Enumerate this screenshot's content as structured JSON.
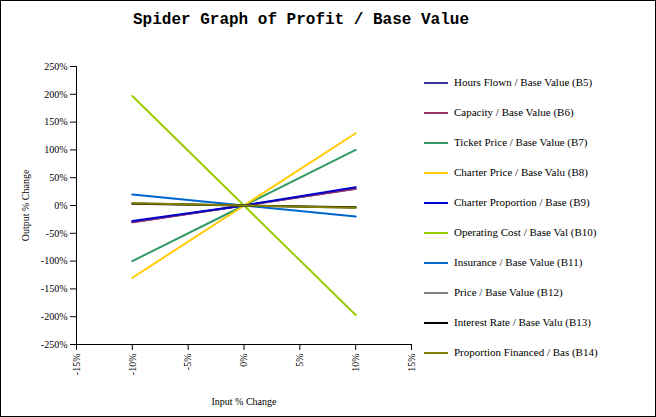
{
  "chart_data": {
    "type": "line",
    "title": "Spider Graph of Profit / Base Value",
    "x_label": "Input % Change",
    "y_label": "Output % Change",
    "x": [
      -10,
      0,
      10
    ],
    "xlim": [
      -15,
      15
    ],
    "xticks": [
      {
        "value": -15,
        "label": "-15%"
      },
      {
        "value": -10,
        "label": "-10%"
      },
      {
        "value": -5,
        "label": "-5%"
      },
      {
        "value": 0,
        "label": "0%"
      },
      {
        "value": 5,
        "label": "5%"
      },
      {
        "value": 10,
        "label": "10%"
      },
      {
        "value": 15,
        "label": "15%"
      }
    ],
    "ylim": [
      -250,
      250
    ],
    "yticks": [
      {
        "value": -250,
        "label": "-250%"
      },
      {
        "value": -200,
        "label": "-200%"
      },
      {
        "value": -150,
        "label": "-150%"
      },
      {
        "value": -100,
        "label": "-100%"
      },
      {
        "value": -50,
        "label": "-50%"
      },
      {
        "value": 0,
        "label": "0%"
      },
      {
        "value": 50,
        "label": "50%"
      },
      {
        "value": 100,
        "label": "100%"
      },
      {
        "value": 150,
        "label": "150%"
      },
      {
        "value": 200,
        "label": "200%"
      },
      {
        "value": 250,
        "label": "250%"
      }
    ],
    "grid": false,
    "legend": "right",
    "series": [
      {
        "name": "Hours Flown / Base Value (B5)",
        "color": "#333399",
        "values": [
          -30,
          0,
          30
        ]
      },
      {
        "name": "Capacity / Base Value (B6)",
        "color": "#993366",
        "values": [
          -30,
          0,
          30
        ]
      },
      {
        "name": "Ticket Price / Base Value (B7)",
        "color": "#339966",
        "values": [
          -100,
          0,
          100
        ]
      },
      {
        "name": "Charter Price / Base Valu (B8)",
        "color": "#ffcc00",
        "values": [
          -130,
          0,
          130
        ]
      },
      {
        "name": "Charter Proportion / Base (B9)",
        "color": "#0000cc",
        "values": [
          -28,
          0,
          33
        ]
      },
      {
        "name": "Operating Cost / Base Val (B10)",
        "color": "#99cc00",
        "values": [
          197,
          0,
          -197
        ]
      },
      {
        "name": "Insurance / Base Value (B11)",
        "color": "#0066cc",
        "values": [
          20,
          0,
          -20
        ]
      },
      {
        "name": "Price / Base Value (B12)",
        "color": "#808080",
        "values": [
          4,
          0,
          -4
        ]
      },
      {
        "name": "Interest Rate / Base Valu (B13)",
        "color": "#000000",
        "values": [
          3,
          0,
          -3
        ]
      },
      {
        "name": "Proportion Financed / Bas (B14)",
        "color": "#808000",
        "values": [
          4,
          0,
          -4
        ]
      }
    ]
  }
}
